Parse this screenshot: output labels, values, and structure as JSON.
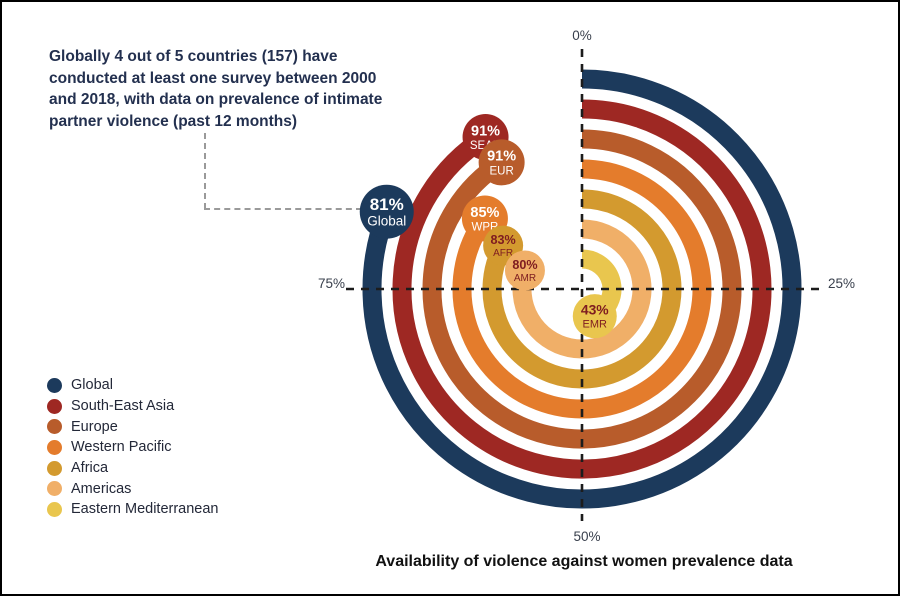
{
  "annotation": {
    "text": "Globally 4 out of 5 countries (157) have\nconducted at least one survey between 2000\nand 2018, with data on prevalence of intimate\npartner violence (past 12 months)"
  },
  "axis": {
    "top": "0%",
    "right": "25%",
    "bottom": "50%",
    "left": "75%"
  },
  "caption": "Availability of violence against women prevalence data",
  "chart_data": {
    "type": "radial-bar",
    "title": "Availability of violence against women prevalence data",
    "unit": "%",
    "direction": "clockwise",
    "start_angle_deg": 0,
    "angle_range_deg": [
      0,
      360
    ],
    "axis_ticks": [
      "0%",
      "25%",
      "50%",
      "75%"
    ],
    "crosshair_color": "#1c1c1c",
    "ring_stroke_width": 19,
    "series": [
      {
        "name": "Global",
        "abbrev": "Global",
        "value": 81,
        "color": "#1C3A5C",
        "label_color": "#FFFFFF",
        "radius": 210,
        "badge_radius": 27
      },
      {
        "name": "South-East Asia",
        "abbrev": "SEAR",
        "value": 91,
        "color": "#9E2823",
        "label_color": "#FFFFFF",
        "radius": 180,
        "badge_radius": 23
      },
      {
        "name": "Europe",
        "abbrev": "EUR",
        "value": 91,
        "color": "#B85C2B",
        "label_color": "#FFFFFF",
        "radius": 150,
        "badge_radius": 23
      },
      {
        "name": "Western Pacific",
        "abbrev": "WPR",
        "value": 85,
        "color": "#E47C2C",
        "label_color": "#FFFFFF",
        "radius": 120,
        "badge_radius": 23
      },
      {
        "name": "Africa",
        "abbrev": "AFR",
        "value": 83,
        "color": "#D39A2F",
        "label_color": "#7E1C20",
        "radius": 90,
        "badge_radius": 20
      },
      {
        "name": "Americas",
        "abbrev": "AMR",
        "value": 80,
        "color": "#F0AF68",
        "label_color": "#7E1C20",
        "radius": 60,
        "badge_radius": 20
      },
      {
        "name": "Eastern Mediterranean",
        "abbrev": "EMR",
        "value": 43,
        "color": "#E9C64E",
        "label_color": "#7E1C20",
        "radius": 30,
        "badge_radius": 22
      }
    ]
  }
}
